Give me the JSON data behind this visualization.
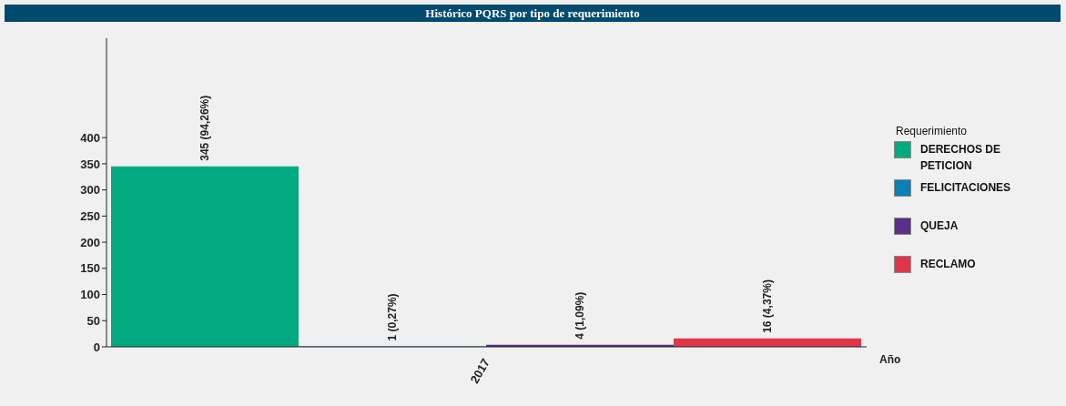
{
  "chart_data": {
    "type": "bar",
    "title": "Histórico PQRS por tipo de requerimiento",
    "categories": [
      "2017"
    ],
    "xlabel": "Año",
    "legend_title": "Requerimiento",
    "legend": "right",
    "ylim": [
      0,
      590
    ],
    "yticks": [
      0,
      50,
      100,
      150,
      200,
      250,
      300,
      350,
      400
    ],
    "grid": false,
    "series": [
      {
        "name": "DERECHOS DE PETICION",
        "color": "#02a97e",
        "values": [
          345
        ],
        "value_labels": [
          "345 (94,26%)"
        ]
      },
      {
        "name": "FELICITACIONES",
        "color": "#0a80b5",
        "values": [
          1
        ],
        "value_labels": [
          "1 (0,27%)"
        ]
      },
      {
        "name": "QUEJA",
        "color": "#5c2d8a",
        "values": [
          4
        ],
        "value_labels": [
          "4 (1,09%)"
        ]
      },
      {
        "name": "RECLAMO",
        "color": "#e0364a",
        "values": [
          16
        ],
        "value_labels": [
          "16 (4,37%)"
        ]
      }
    ]
  }
}
